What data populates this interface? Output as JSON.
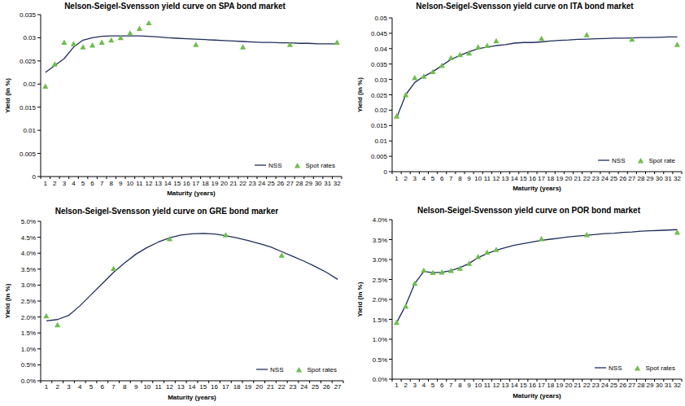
{
  "chart_data": [
    {
      "type": "line",
      "title": "Nelson-Seigel-Svensson yield curve on SPA bond market",
      "x_label": "Maturity (years)",
      "y_label": "Yield (in %)",
      "categories": [
        1,
        2,
        3,
        4,
        5,
        6,
        7,
        8,
        9,
        10,
        11,
        12,
        13,
        14,
        15,
        16,
        17,
        18,
        19,
        20,
        21,
        22,
        23,
        24,
        25,
        26,
        27,
        28,
        29,
        30,
        31,
        32
      ],
      "series": [
        {
          "name": "NSS",
          "type": "line",
          "color": "#1f2d5c",
          "line_style": "solid",
          "values": [
            0.0225,
            0.024,
            0.0255,
            0.028,
            0.0295,
            0.03,
            0.0303,
            0.0304,
            0.0304,
            0.0304,
            0.0304,
            0.0303,
            0.0302,
            0.03,
            0.0299,
            0.0298,
            0.0297,
            0.0296,
            0.0295,
            0.0294,
            0.0293,
            0.0292,
            0.0291,
            0.029,
            0.029,
            0.0289,
            0.0289,
            0.0288,
            0.0288,
            0.0287,
            0.0287,
            0.0287
          ]
        },
        {
          "name": "Spot rates",
          "type": "scatter",
          "color": "#6cbf4a",
          "marker": "triangle",
          "values": [
            0.0195,
            0.0243,
            0.029,
            0.0287,
            0.028,
            0.0284,
            0.029,
            0.0295,
            0.03,
            0.031,
            0.032,
            0.0332,
            null,
            null,
            null,
            null,
            0.0285,
            null,
            null,
            null,
            null,
            0.028,
            null,
            null,
            null,
            null,
            0.0285,
            null,
            null,
            null,
            null,
            0.029
          ]
        }
      ],
      "ylim": [
        0,
        0.035
      ],
      "yticks": [
        0,
        0.005,
        0.01,
        0.015,
        0.02,
        0.025,
        0.03,
        0.035
      ],
      "grid": false,
      "legend": "lower right"
    },
    {
      "type": "line",
      "title": "Nelson-Seigel-Svensson yield curve on ITA bond market",
      "x_label": "Maturity (years)",
      "y_label": "Yield (in %)",
      "categories": [
        1,
        2,
        3,
        4,
        5,
        6,
        7,
        8,
        9,
        10,
        11,
        12,
        13,
        14,
        15,
        16,
        17,
        18,
        19,
        20,
        21,
        22,
        23,
        24,
        25,
        26,
        27,
        28,
        29,
        30,
        31,
        32
      ],
      "series": [
        {
          "name": "NSS",
          "type": "line",
          "color": "#1f2d5c",
          "line_style": "solid",
          "values": [
            0.0175,
            0.025,
            0.029,
            0.031,
            0.0325,
            0.0345,
            0.0365,
            0.0378,
            0.039,
            0.04,
            0.0405,
            0.041,
            0.0413,
            0.0418,
            0.042,
            0.042,
            0.0422,
            0.0425,
            0.0427,
            0.0428,
            0.043,
            0.0431,
            0.0432,
            0.0433,
            0.0434,
            0.0434,
            0.0435,
            0.0436,
            0.0436,
            0.0437,
            0.0438,
            0.0438
          ]
        },
        {
          "name": "Spot rate",
          "type": "scatter",
          "color": "#6cbf4a",
          "marker": "triangle",
          "values": [
            0.018,
            0.025,
            0.0305,
            0.031,
            0.0325,
            0.0345,
            0.037,
            0.038,
            0.0385,
            0.0405,
            0.041,
            0.0425,
            null,
            null,
            null,
            null,
            0.0433,
            null,
            null,
            null,
            null,
            0.0445,
            null,
            null,
            null,
            null,
            0.043,
            null,
            null,
            null,
            null,
            0.0413
          ]
        }
      ],
      "ylim": [
        0,
        0.05
      ],
      "yticks": [
        0,
        0.005,
        0.01,
        0.015,
        0.02,
        0.025,
        0.03,
        0.035,
        0.04,
        0.045,
        0.05
      ],
      "grid": false,
      "legend": "lower right"
    },
    {
      "type": "line",
      "title": "Nelson-Seigel-Svensson yield curve on GRE bond marker",
      "x_label": "Maturity (years)",
      "y_label": "Yield (in %)",
      "categories": [
        1,
        2,
        3,
        4,
        5,
        6,
        7,
        8,
        9,
        10,
        11,
        12,
        13,
        14,
        15,
        16,
        17,
        18,
        19,
        20,
        21,
        22,
        23,
        24,
        25,
        26,
        27
      ],
      "series": [
        {
          "name": "NSS",
          "type": "line",
          "color": "#1f2d5c",
          "line_style": "solid",
          "values": [
            1.88,
            1.92,
            2.05,
            2.35,
            2.7,
            3.05,
            3.4,
            3.7,
            3.97,
            4.18,
            4.35,
            4.48,
            4.57,
            4.61,
            4.62,
            4.6,
            4.55,
            4.48,
            4.4,
            4.3,
            4.2,
            4.05,
            3.9,
            3.75,
            3.58,
            3.4,
            3.18
          ]
        },
        {
          "name": "Spot rates",
          "type": "scatter",
          "color": "#6cbf4a",
          "marker": "triangle",
          "values": [
            2.03,
            1.75,
            null,
            null,
            null,
            null,
            3.52,
            null,
            null,
            null,
            null,
            4.45,
            null,
            null,
            null,
            null,
            4.57,
            null,
            null,
            null,
            null,
            3.93,
            null,
            null,
            null,
            null,
            null
          ]
        }
      ],
      "ylim": [
        0,
        5
      ],
      "yticks": [
        {
          "value": 0,
          "label": "0.0%"
        },
        {
          "value": 0.5,
          "label": "0.5%"
        },
        {
          "value": 1,
          "label": "1.0%"
        },
        {
          "value": 1.5,
          "label": "1.5%"
        },
        {
          "value": 2,
          "label": "2.0%"
        },
        {
          "value": 2.5,
          "label": "2.5%"
        },
        {
          "value": 3,
          "label": "3.0%"
        },
        {
          "value": 3.5,
          "label": "3.5%"
        },
        {
          "value": 4,
          "label": "4.0%"
        },
        {
          "value": 4.5,
          "label": "4.5%"
        },
        {
          "value": 5,
          "label": "5.0%"
        }
      ],
      "grid": false,
      "legend": "lower right"
    },
    {
      "type": "line",
      "title": "Nelson-Seigel-Svensson yield curve on POR bond market",
      "x_label": "Maturity (years)",
      "y_label": "Yield (in %)",
      "categories": [
        1,
        2,
        3,
        4,
        5,
        6,
        7,
        8,
        9,
        10,
        11,
        12,
        13,
        14,
        15,
        16,
        17,
        18,
        19,
        20,
        21,
        22,
        23,
        24,
        25,
        26,
        27,
        28,
        29,
        30,
        31,
        32
      ],
      "series": [
        {
          "name": "NSS",
          "type": "line",
          "color": "#1f2d5c",
          "line_style": "solid",
          "values": [
            1.42,
            1.85,
            2.4,
            2.7,
            2.67,
            2.68,
            2.72,
            2.8,
            2.9,
            3.05,
            3.15,
            3.23,
            3.3,
            3.36,
            3.4,
            3.44,
            3.48,
            3.51,
            3.54,
            3.57,
            3.59,
            3.61,
            3.63,
            3.65,
            3.66,
            3.68,
            3.69,
            3.71,
            3.72,
            3.73,
            3.74,
            3.75
          ]
        },
        {
          "name": "Spot rates",
          "type": "scatter",
          "color": "#6cbf4a",
          "marker": "triangle",
          "values": [
            1.42,
            1.83,
            2.4,
            2.73,
            2.67,
            2.68,
            2.72,
            2.78,
            2.9,
            3.07,
            3.18,
            3.25,
            null,
            null,
            null,
            null,
            3.52,
            null,
            null,
            null,
            null,
            3.62,
            null,
            null,
            null,
            null,
            null,
            null,
            null,
            null,
            null,
            3.68
          ]
        }
      ],
      "ylim": [
        0,
        4
      ],
      "yticks": [
        {
          "value": 0,
          "label": "0.0%"
        },
        {
          "value": 0.5,
          "label": "0.5%"
        },
        {
          "value": 1,
          "label": "1.0%"
        },
        {
          "value": 1.5,
          "label": "1.5%"
        },
        {
          "value": 2,
          "label": "2.0%"
        },
        {
          "value": 2.5,
          "label": "2.5%"
        },
        {
          "value": 3,
          "label": "3.0%"
        },
        {
          "value": 3.5,
          "label": "3.5%"
        },
        {
          "value": 4,
          "label": "4.0%"
        }
      ],
      "grid": false,
      "legend": "lower right"
    }
  ]
}
